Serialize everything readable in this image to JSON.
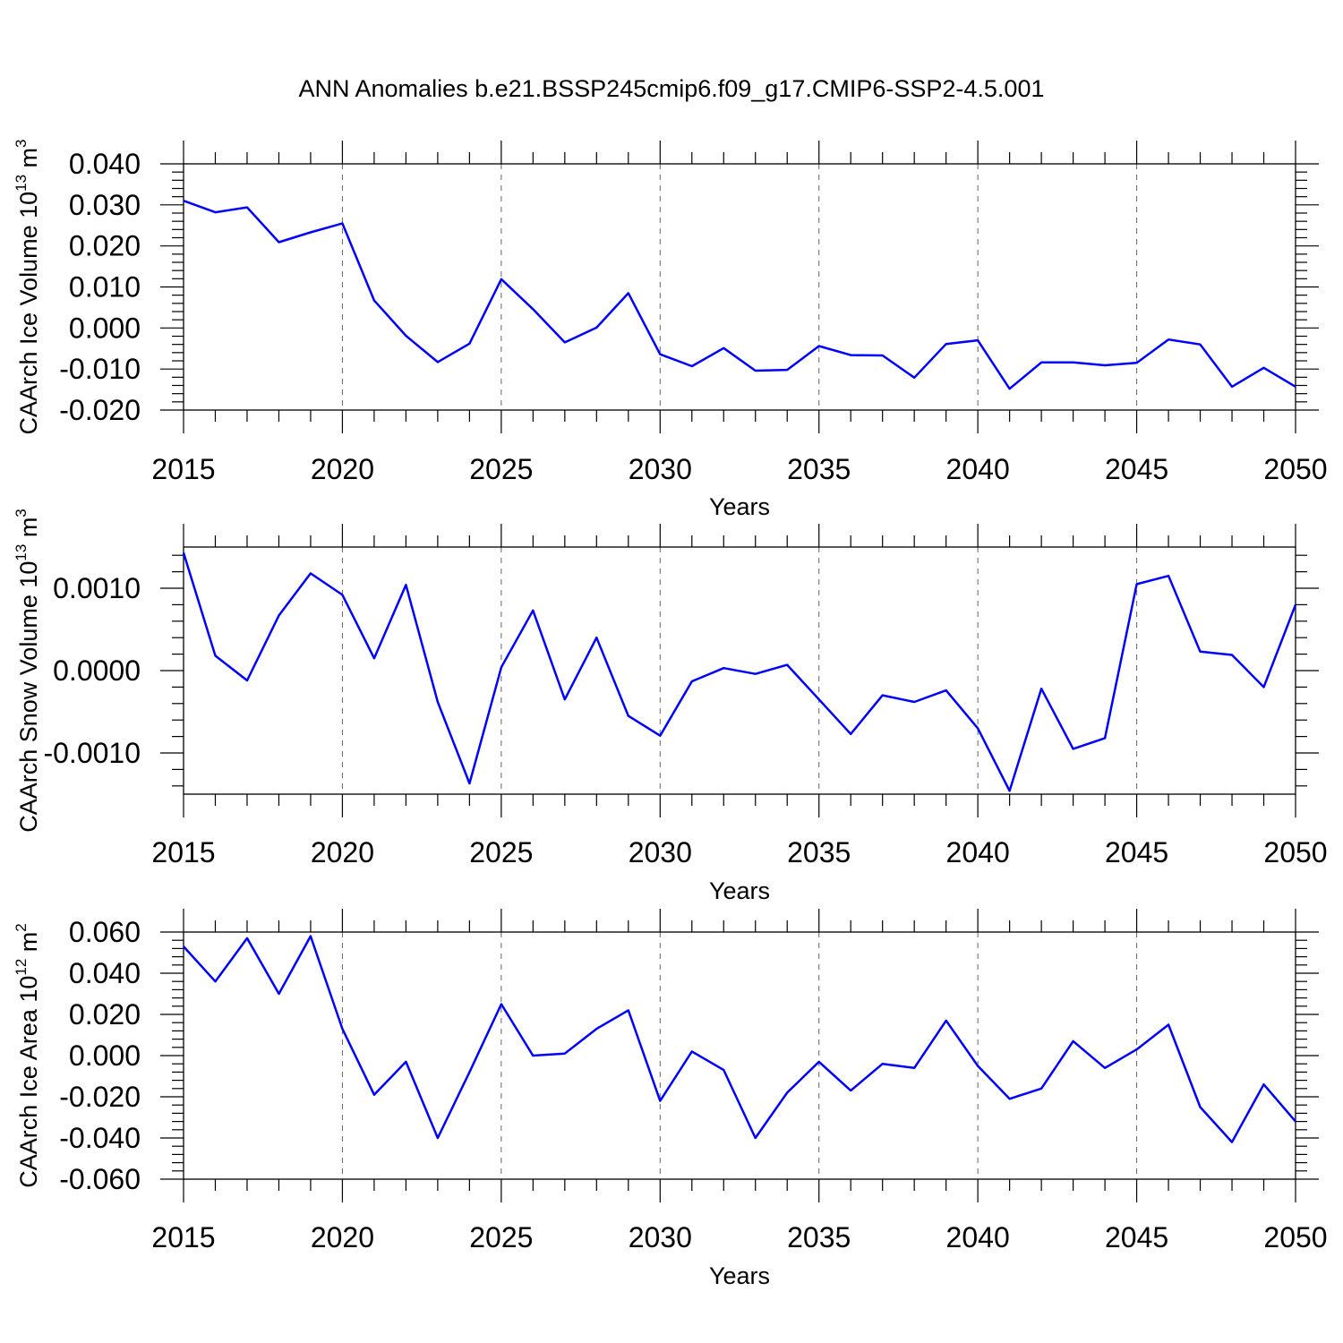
{
  "title": "ANN Anomalies b.e21.BSSP245cmip6.f09_g17.CMIP6-SSP2-4.5.001",
  "colors": {
    "line": "#0000ff",
    "grid": "#666666",
    "frame": "#000000"
  },
  "chart_data": [
    {
      "type": "line",
      "ylabel": "CAArch Ice Volume",
      "ylabel_unit_base": "10",
      "ylabel_unit_exp": "13",
      "ylabel_unit_symbol": "m",
      "ylabel_unit_symbol_exp": "3",
      "xlabel": "Years",
      "xlim": [
        2015,
        2050
      ],
      "ylim": [
        -0.02,
        0.04
      ],
      "xticks": [
        2015,
        2020,
        2025,
        2030,
        2035,
        2040,
        2045,
        2050
      ],
      "yticks": [
        -0.02,
        -0.01,
        0.0,
        0.01,
        0.02,
        0.03,
        0.04
      ],
      "ytick_labels": [
        "-0.020",
        "-0.010",
        "0.000",
        "0.010",
        "0.020",
        "0.030",
        "0.040"
      ],
      "grid": "vertical dashed at major x ticks",
      "x": [
        2015,
        2016,
        2017,
        2018,
        2019,
        2020,
        2021,
        2022,
        2023,
        2024,
        2025,
        2026,
        2027,
        2028,
        2029,
        2030,
        2031,
        2032,
        2033,
        2034,
        2035,
        2036,
        2037,
        2038,
        2039,
        2040,
        2041,
        2042,
        2043,
        2044,
        2045,
        2046,
        2047,
        2048,
        2049,
        2050
      ],
      "values": [
        0.031,
        0.0282,
        0.0294,
        0.0209,
        0.0233,
        0.0255,
        0.0067,
        -0.0019,
        -0.0083,
        -0.0038,
        0.0119,
        0.0046,
        -0.0035,
        0.0001,
        0.0085,
        -0.0064,
        -0.0093,
        -0.0049,
        -0.0104,
        -0.0102,
        -0.0044,
        -0.0066,
        -0.0067,
        -0.0121,
        -0.0039,
        -0.003,
        -0.0148,
        -0.0084,
        -0.0084,
        -0.0091,
        -0.0085,
        -0.0028,
        -0.004,
        -0.0143,
        -0.0097,
        -0.0143
      ]
    },
    {
      "type": "line",
      "ylabel": "CAArch Snow Volume",
      "ylabel_unit_base": "10",
      "ylabel_unit_exp": "13",
      "ylabel_unit_symbol": "m",
      "ylabel_unit_symbol_exp": "3",
      "xlabel": "Years",
      "xlim": [
        2015,
        2050
      ],
      "ylim": [
        -0.0015,
        0.0015
      ],
      "xticks": [
        2015,
        2020,
        2025,
        2030,
        2035,
        2040,
        2045,
        2050
      ],
      "yticks": [
        -0.001,
        0.0,
        0.001
      ],
      "ytick_labels": [
        "-0.0010",
        "0.0000",
        "0.0010"
      ],
      "grid": "vertical dashed at major x ticks",
      "x": [
        2015,
        2016,
        2017,
        2018,
        2019,
        2020,
        2021,
        2022,
        2023,
        2024,
        2025,
        2026,
        2027,
        2028,
        2029,
        2030,
        2031,
        2032,
        2033,
        2034,
        2035,
        2036,
        2037,
        2038,
        2039,
        2040,
        2041,
        2042,
        2043,
        2044,
        2045,
        2046,
        2047,
        2048,
        2049,
        2050
      ],
      "values": [
        0.00143,
        0.00018,
        -0.00012,
        0.00067,
        0.00118,
        0.00092,
        0.00015,
        0.00104,
        -0.00038,
        -0.00137,
        4e-05,
        0.00073,
        -0.00035,
        0.0004,
        -0.00055,
        -0.00079,
        -0.00013,
        3e-05,
        -4e-05,
        7e-05,
        -0.00035,
        -0.00077,
        -0.0003,
        -0.00038,
        -0.00024,
        -0.0007,
        -0.00146,
        -0.00022,
        -0.00095,
        -0.00082,
        0.00105,
        0.00115,
        0.00023,
        0.00019,
        -0.0002,
        0.0008
      ]
    },
    {
      "type": "line",
      "ylabel": "CAArch Ice Area",
      "ylabel_unit_base": "10",
      "ylabel_unit_exp": "12",
      "ylabel_unit_symbol": "m",
      "ylabel_unit_symbol_exp": "2",
      "xlabel": "Years",
      "xlim": [
        2015,
        2050
      ],
      "ylim": [
        -0.06,
        0.06
      ],
      "xticks": [
        2015,
        2020,
        2025,
        2030,
        2035,
        2040,
        2045,
        2050
      ],
      "yticks": [
        -0.06,
        -0.04,
        -0.02,
        0.0,
        0.02,
        0.04,
        0.06
      ],
      "ytick_labels": [
        "-0.060",
        "-0.040",
        "-0.020",
        "0.000",
        "0.020",
        "0.040",
        "0.060"
      ],
      "grid": "vertical dashed at major x ticks",
      "x": [
        2015,
        2016,
        2017,
        2018,
        2019,
        2020,
        2021,
        2022,
        2023,
        2024,
        2025,
        2026,
        2027,
        2028,
        2029,
        2030,
        2031,
        2032,
        2033,
        2034,
        2035,
        2036,
        2037,
        2038,
        2039,
        2040,
        2041,
        2042,
        2043,
        2044,
        2045,
        2046,
        2047,
        2048,
        2049,
        2050
      ],
      "values": [
        0.053,
        0.036,
        0.057,
        0.03,
        0.058,
        0.013,
        -0.019,
        -0.003,
        -0.04,
        -0.008,
        0.025,
        0.0,
        0.001,
        0.013,
        0.022,
        -0.022,
        0.002,
        -0.007,
        -0.04,
        -0.018,
        -0.003,
        -0.017,
        -0.004,
        -0.006,
        0.017,
        -0.005,
        -0.021,
        -0.016,
        0.007,
        -0.006,
        0.003,
        0.015,
        -0.025,
        -0.042,
        -0.014,
        -0.032
      ]
    }
  ]
}
